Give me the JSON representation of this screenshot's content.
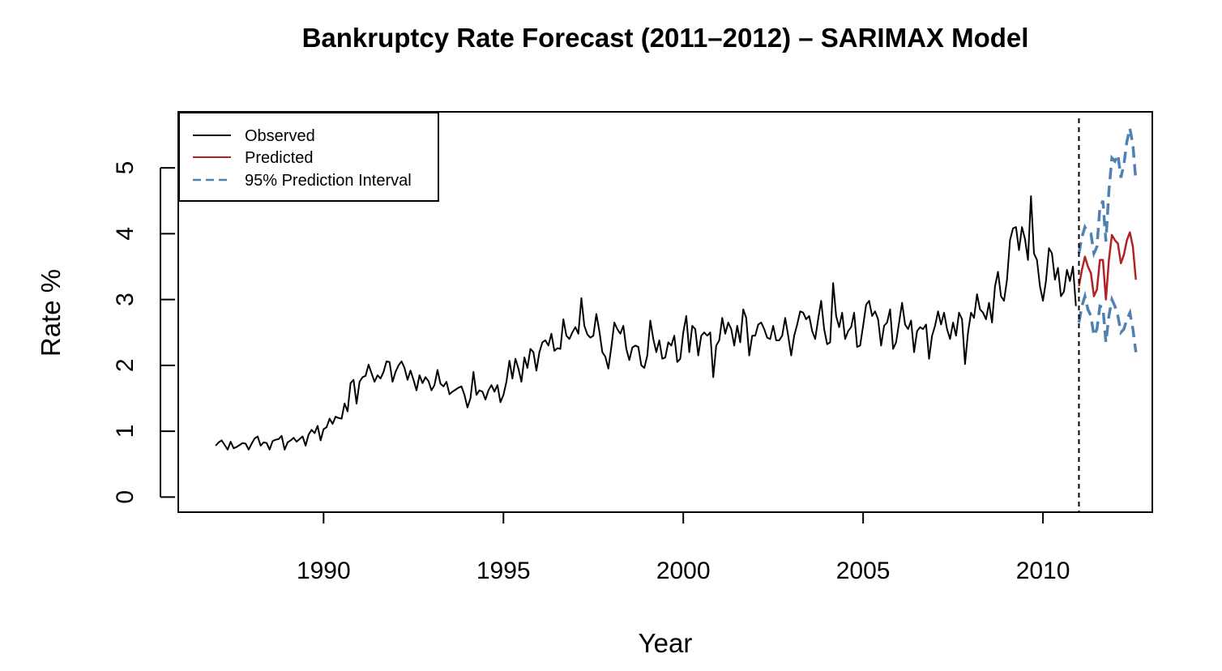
{
  "chart_data": {
    "type": "line",
    "title": "Bankruptcy Rate Forecast (2011–2012) – SARIMAX Model",
    "xlabel": "Year",
    "ylabel": "Rate %",
    "xlim": [
      1985.96,
      2013.04
    ],
    "ylim": [
      -0.23,
      5.85
    ],
    "x_ticks": [
      1990,
      1995,
      2000,
      2005,
      2010
    ],
    "y_ticks": [
      0,
      1,
      2,
      3,
      4,
      5
    ],
    "grid": false,
    "legend_position": "top-left",
    "forecast_start": 2011,
    "colors": {
      "observed": "#000000",
      "predicted": "#b22222",
      "interval": "#4f81b5"
    },
    "legend": [
      {
        "label": "Observed",
        "style": "solid",
        "color": "#000000"
      },
      {
        "label": "Predicted",
        "style": "solid",
        "color": "#b22222"
      },
      {
        "label": "95% Prediction Interval",
        "style": "dashed",
        "color": "#4f81b5"
      }
    ],
    "series": [
      {
        "name": "Observed",
        "start": 1987.0,
        "step": 0.08333333,
        "values": [
          0.78,
          0.83,
          0.86,
          0.79,
          0.72,
          0.84,
          0.74,
          0.76,
          0.79,
          0.82,
          0.81,
          0.72,
          0.81,
          0.89,
          0.92,
          0.78,
          0.83,
          0.82,
          0.72,
          0.85,
          0.87,
          0.88,
          0.93,
          0.72,
          0.83,
          0.86,
          0.9,
          0.84,
          0.88,
          0.92,
          0.78,
          0.95,
          1.02,
          0.97,
          1.08,
          0.86,
          1.03,
          1.06,
          1.19,
          1.11,
          1.22,
          1.2,
          1.19,
          1.42,
          1.3,
          1.73,
          1.78,
          1.42,
          1.75,
          1.82,
          1.84,
          2.01,
          1.88,
          1.75,
          1.85,
          1.8,
          1.9,
          2.06,
          2.05,
          1.75,
          1.9,
          2.0,
          2.06,
          1.96,
          1.78,
          1.92,
          1.78,
          1.62,
          1.85,
          1.73,
          1.82,
          1.76,
          1.62,
          1.7,
          1.93,
          1.72,
          1.68,
          1.75,
          1.56,
          1.6,
          1.63,
          1.66,
          1.68,
          1.55,
          1.36,
          1.5,
          1.9,
          1.55,
          1.62,
          1.6,
          1.48,
          1.62,
          1.7,
          1.6,
          1.7,
          1.44,
          1.55,
          1.75,
          2.07,
          1.8,
          2.1,
          1.95,
          1.75,
          2.12,
          1.96,
          2.25,
          2.2,
          1.92,
          2.2,
          2.35,
          2.38,
          2.3,
          2.48,
          2.22,
          2.26,
          2.25,
          2.7,
          2.45,
          2.4,
          2.5,
          2.58,
          2.48,
          3.02,
          2.6,
          2.47,
          2.42,
          2.45,
          2.78,
          2.52,
          2.2,
          2.13,
          1.95,
          2.28,
          2.65,
          2.55,
          2.48,
          2.6,
          2.25,
          2.08,
          2.27,
          2.3,
          2.28,
          2.0,
          1.96,
          2.15,
          2.68,
          2.4,
          2.2,
          2.38,
          2.1,
          2.12,
          2.35,
          2.3,
          2.45,
          2.05,
          2.1,
          2.5,
          2.75,
          2.2,
          2.6,
          2.55,
          2.15,
          2.45,
          2.5,
          2.45,
          2.5,
          1.82,
          2.3,
          2.38,
          2.72,
          2.48,
          2.65,
          2.55,
          2.3,
          2.6,
          2.35,
          2.85,
          2.72,
          2.15,
          2.45,
          2.45,
          2.62,
          2.65,
          2.55,
          2.42,
          2.4,
          2.6,
          2.38,
          2.38,
          2.45,
          2.72,
          2.45,
          2.15,
          2.45,
          2.62,
          2.82,
          2.8,
          2.7,
          2.75,
          2.52,
          2.4,
          2.7,
          2.98,
          2.55,
          2.32,
          2.35,
          3.25,
          2.75,
          2.58,
          2.8,
          2.4,
          2.52,
          2.58,
          2.8,
          2.28,
          2.3,
          2.6,
          2.92,
          2.98,
          2.75,
          2.82,
          2.7,
          2.3,
          2.6,
          2.65,
          2.85,
          2.25,
          2.35,
          2.65,
          2.95,
          2.62,
          2.55,
          2.68,
          2.2,
          2.52,
          2.58,
          2.55,
          2.62,
          2.1,
          2.45,
          2.6,
          2.82,
          2.62,
          2.8,
          2.55,
          2.4,
          2.65,
          2.45,
          2.8,
          2.7,
          2.02,
          2.5,
          2.8,
          2.72,
          3.08,
          2.85,
          2.8,
          2.7,
          2.95,
          2.65,
          3.2,
          3.42,
          3.05,
          2.98,
          3.3,
          3.9,
          4.08,
          4.1,
          3.75,
          4.1,
          3.92,
          3.6,
          4.57,
          3.7,
          3.6,
          3.2,
          2.98,
          3.28,
          3.78,
          3.7,
          3.3,
          3.48,
          3.05,
          3.12,
          3.45,
          3.28,
          3.5,
          2.9
        ]
      },
      {
        "name": "Predicted",
        "start": 2011.0,
        "step": 0.08333333,
        "values": [
          3.2,
          3.45,
          3.65,
          3.5,
          3.4,
          3.05,
          3.15,
          3.6,
          3.6,
          3.0,
          3.6,
          3.98,
          3.9,
          3.85,
          3.55,
          3.68,
          3.9,
          4.02,
          3.8,
          3.3
        ]
      },
      {
        "name": "95% Prediction Interval",
        "start": 2011.0,
        "step": 0.08333333,
        "upper": [
          3.7,
          3.95,
          4.1,
          4.02,
          4.0,
          3.7,
          3.8,
          4.4,
          4.5,
          3.88,
          4.65,
          5.15,
          5.1,
          5.2,
          4.85,
          5.05,
          5.4,
          5.6,
          5.35,
          4.8
        ],
        "lower": [
          2.65,
          2.9,
          3.05,
          2.85,
          2.75,
          2.45,
          2.55,
          2.9,
          2.88,
          2.35,
          2.75,
          3.0,
          2.9,
          2.75,
          2.5,
          2.55,
          2.7,
          2.8,
          2.55,
          2.2
        ]
      }
    ]
  }
}
